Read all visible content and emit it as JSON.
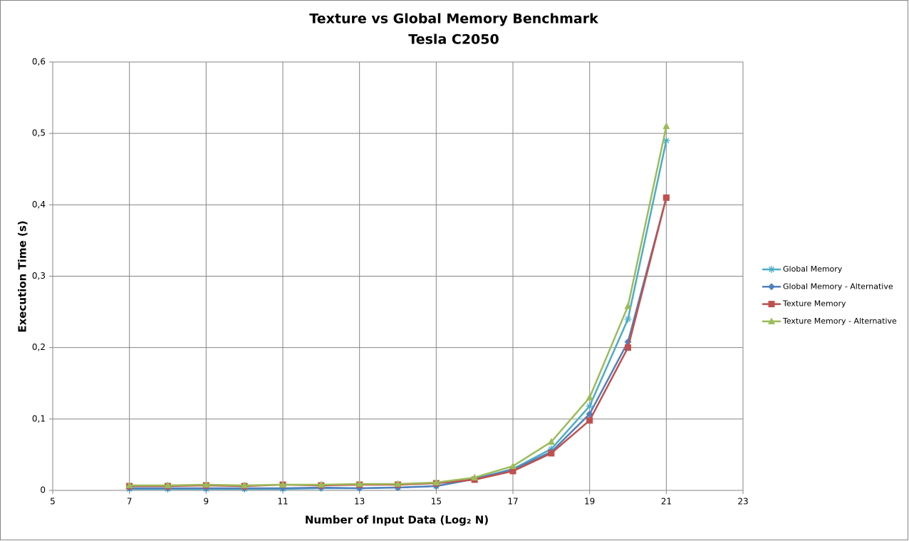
{
  "chart_data": {
    "type": "line",
    "title": "Texture vs Global Memory Benchmark",
    "subtitle": "Tesla C2050",
    "x_label": "Number of Input Data (Log₂ N)",
    "y_label": "Execution Time (s)",
    "x": [
      7,
      8,
      9,
      10,
      11,
      12,
      13,
      14,
      15,
      16,
      17,
      18,
      19,
      20,
      21
    ],
    "series": [
      {
        "name": "Global Memory",
        "color": "#4bacc6",
        "marker": "star",
        "values": [
          0.002,
          0.002,
          0.002,
          0.002,
          0.002,
          0.003,
          0.003,
          0.004,
          0.006,
          0.016,
          0.03,
          0.058,
          0.118,
          0.24,
          0.49
        ]
      },
      {
        "name": "Global Memory - Alternative",
        "color": "#4f81bd",
        "marker": "diamond",
        "values": [
          0.003,
          0.003,
          0.003,
          0.003,
          0.003,
          0.004,
          0.003,
          0.004,
          0.006,
          0.016,
          0.029,
          0.054,
          0.107,
          0.208,
          0.41
        ]
      },
      {
        "name": "Texture Memory",
        "color": "#c0504d",
        "marker": "square",
        "values": [
          0.006,
          0.006,
          0.007,
          0.006,
          0.008,
          0.007,
          0.008,
          0.008,
          0.01,
          0.015,
          0.027,
          0.052,
          0.098,
          0.2,
          0.41
        ]
      },
      {
        "name": "Texture Memory - Alternative",
        "color": "#9bbb59",
        "marker": "triangle",
        "values": [
          0.007,
          0.007,
          0.008,
          0.007,
          0.008,
          0.008,
          0.009,
          0.009,
          0.011,
          0.018,
          0.034,
          0.068,
          0.13,
          0.258,
          0.51
        ]
      }
    ],
    "xlim": [
      5,
      23
    ],
    "xticks": [
      5,
      7,
      9,
      11,
      13,
      15,
      17,
      19,
      21,
      23
    ],
    "ylim": [
      0,
      0.6
    ],
    "yticks": [
      0,
      {
        "value": 0.1,
        "label": "0,1"
      },
      {
        "value": 0.2,
        "label": "0,2"
      },
      {
        "value": 0.3,
        "label": "0,3"
      },
      {
        "value": 0.4,
        "label": "0,4"
      },
      {
        "value": 0.5,
        "label": "0,5"
      },
      {
        "value": 0.6,
        "label": "0,6"
      }
    ],
    "grid": true,
    "legend": "right"
  }
}
